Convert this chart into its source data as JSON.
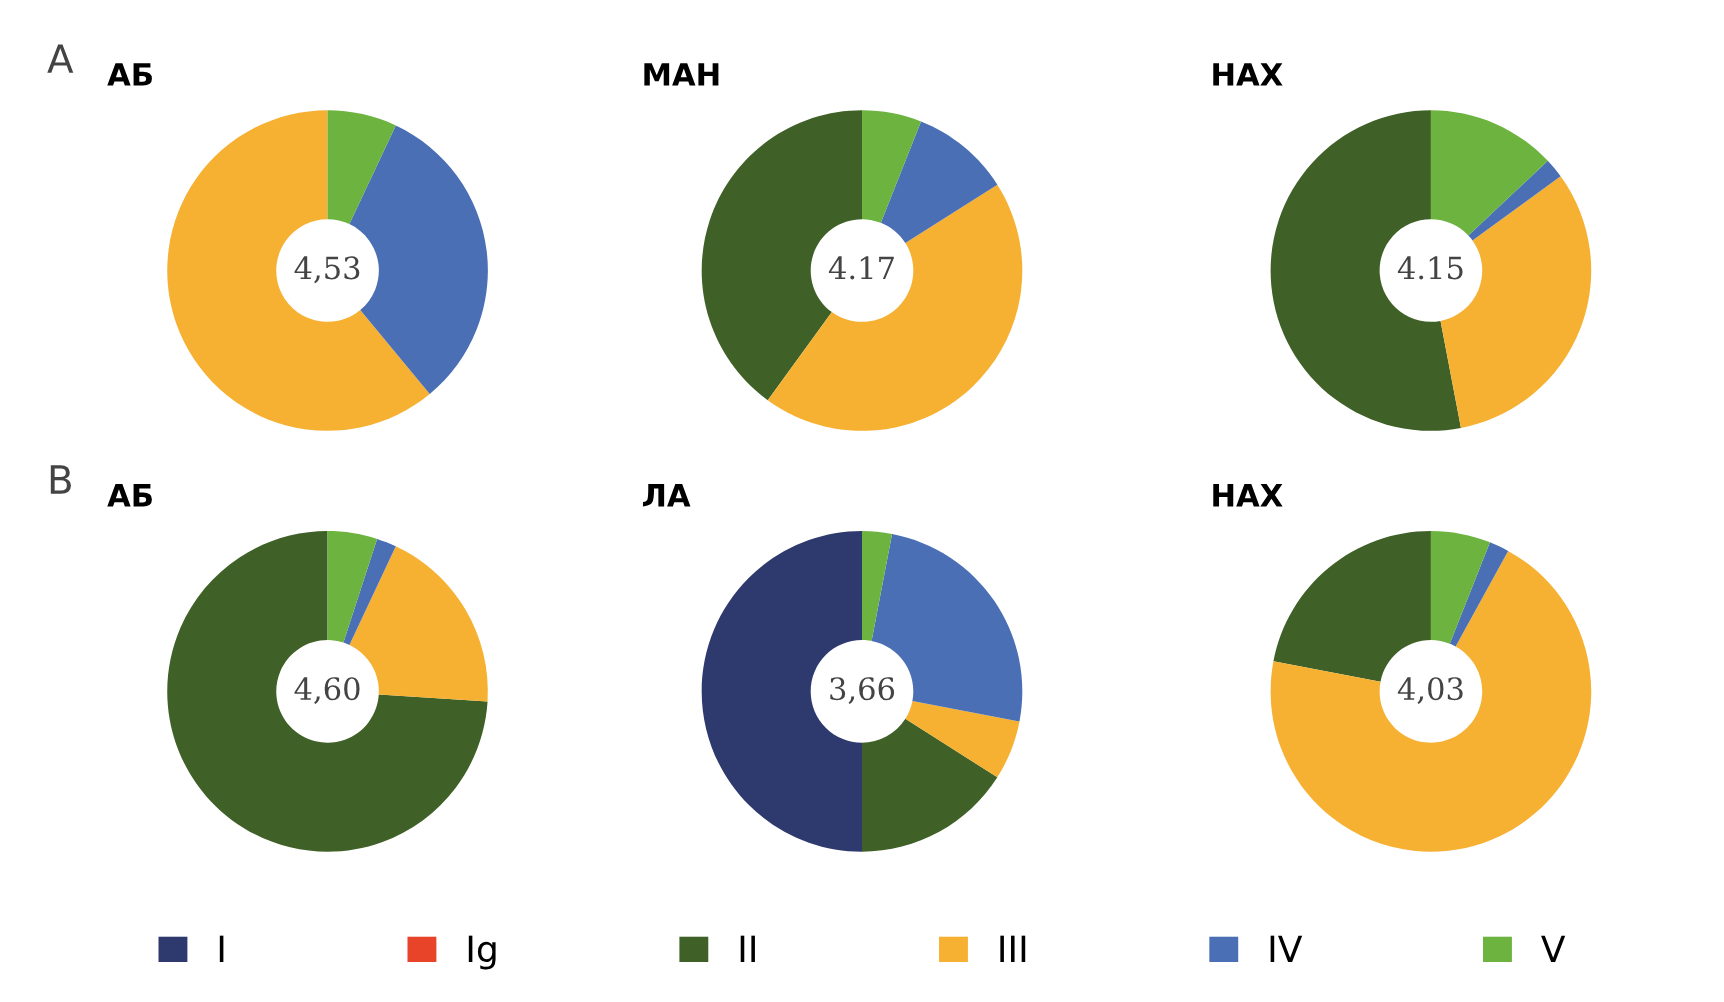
{
  "chart_data": [
    {
      "type": "donut",
      "title": "АБ",
      "annotations": [
        "A",
        "4,53"
      ],
      "categories": [
        "I",
        "Ig",
        "II",
        "III",
        "IV",
        "V"
      ],
      "values": [
        0,
        0,
        0,
        61,
        32,
        7
      ],
      "colors": [
        "#2e3a6e",
        "#e8442a",
        "#3f6127",
        "#f6b133",
        "#4a6fb5",
        "#6db33f"
      ],
      "legend": "bottom"
    },
    {
      "type": "donut",
      "title": "МАН",
      "annotations": [
        "4.17"
      ],
      "categories": [
        null,
        null,
        null,
        null,
        null,
        null
      ],
      "values": [
        0,
        0,
        40,
        44,
        10,
        6
      ],
      "colors": [
        "#2e3a6e",
        "#e8442a",
        "#3f6127",
        "#f6b133",
        "#4a6fb5",
        "#6db33f"
      ]
    },
    {
      "type": "donut",
      "title": "НАХ",
      "annotations": [
        "4.15"
      ],
      "categories": [
        null,
        null,
        null,
        null,
        null,
        null
      ],
      "values": [
        0,
        0,
        53,
        32,
        2,
        13
      ],
      "colors": [
        "#2e3a6e",
        "#e8442a",
        "#3f6127",
        "#f6b133",
        "#4a6fb5",
        "#6db33f"
      ]
    },
    {
      "type": "donut",
      "title": "АБ",
      "annotations": [
        "B",
        "4,60"
      ],
      "categories": [
        null,
        null,
        null,
        null,
        null,
        null
      ],
      "values": [
        0,
        0,
        74,
        19,
        2,
        5
      ],
      "colors": [
        "#2e3a6e",
        "#e8442a",
        "#3f6127",
        "#f6b133",
        "#4a6fb5",
        "#6db33f"
      ]
    },
    {
      "type": "donut",
      "title": "ЛА",
      "annotations": [
        "3,66"
      ],
      "categories": [
        null,
        null,
        null,
        null,
        null,
        null
      ],
      "values": [
        50,
        0,
        16,
        6,
        25,
        3
      ],
      "colors": [
        "#2e3a6e",
        "#e8442a",
        "#3f6127",
        "#f6b133",
        "#4a6fb5",
        "#6db33f"
      ]
    },
    {
      "type": "donut",
      "title": "НАХ",
      "annotations": [
        "4,03"
      ],
      "categories": [
        null,
        null,
        null,
        null,
        null,
        null
      ],
      "values": [
        0,
        0,
        22,
        70,
        2,
        6
      ],
      "colors": [
        "#2e3a6e",
        "#e8442a",
        "#3f6127",
        "#f6b133",
        "#4a6fb5",
        "#6db33f"
      ]
    }
  ]
}
